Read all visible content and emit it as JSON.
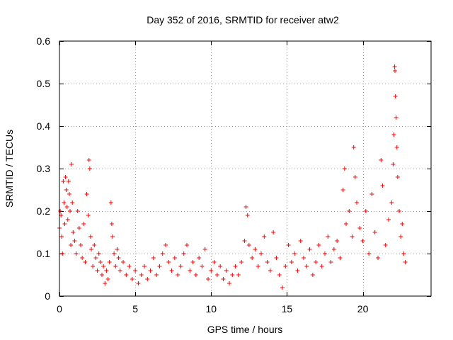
{
  "chart_data": {
    "type": "scatter",
    "title": "Day 352 of 2016, SRMTID for receiver atw2",
    "xlabel": "GPS time / hours",
    "ylabel": "SRMTID / TECUs",
    "xlim": [
      0,
      24.5
    ],
    "ylim": [
      0,
      0.6
    ],
    "xticks": [
      0,
      5,
      10,
      15,
      20
    ],
    "yticks": [
      0,
      0.1,
      0.2,
      0.3,
      0.4,
      0.5,
      0.6
    ],
    "xtick_labels": [
      "0",
      "5",
      "10",
      "15",
      "20"
    ],
    "ytick_labels": [
      "0",
      "0.1",
      "0.2",
      "0.3",
      "0.4",
      "0.5",
      "0.6"
    ],
    "grid": true,
    "marker": "+",
    "color": "#ff0000",
    "series": [
      {
        "name": "SRMTID",
        "points": [
          [
            0.0,
            0.16
          ],
          [
            0.05,
            0.2
          ],
          [
            0.1,
            0.19
          ],
          [
            0.15,
            0.14
          ],
          [
            0.2,
            0.1
          ],
          [
            0.25,
            0.27
          ],
          [
            0.3,
            0.22
          ],
          [
            0.35,
            0.17
          ],
          [
            0.4,
            0.28
          ],
          [
            0.45,
            0.25
          ],
          [
            0.5,
            0.21
          ],
          [
            0.55,
            0.18
          ],
          [
            0.6,
            0.27
          ],
          [
            0.65,
            0.24
          ],
          [
            0.7,
            0.2
          ],
          [
            0.75,
            0.12
          ],
          [
            0.8,
            0.31
          ],
          [
            0.85,
            0.22
          ],
          [
            0.9,
            0.15
          ],
          [
            1.0,
            0.13
          ],
          [
            1.1,
            0.1
          ],
          [
            1.2,
            0.2
          ],
          [
            1.3,
            0.16
          ],
          [
            1.4,
            0.12
          ],
          [
            1.5,
            0.09
          ],
          [
            1.6,
            0.17
          ],
          [
            1.7,
            0.08
          ],
          [
            1.8,
            0.24
          ],
          [
            1.9,
            0.19
          ],
          [
            1.95,
            0.32
          ],
          [
            2.0,
            0.3
          ],
          [
            2.05,
            0.14
          ],
          [
            2.1,
            0.11
          ],
          [
            2.2,
            0.07
          ],
          [
            2.3,
            0.12
          ],
          [
            2.4,
            0.09
          ],
          [
            2.5,
            0.06
          ],
          [
            2.6,
            0.1
          ],
          [
            2.7,
            0.08
          ],
          [
            2.8,
            0.05
          ],
          [
            2.9,
            0.07
          ],
          [
            3.0,
            0.03
          ],
          [
            3.1,
            0.06
          ],
          [
            3.2,
            0.04
          ],
          [
            3.3,
            0.08
          ],
          [
            3.4,
            0.22
          ],
          [
            3.45,
            0.17
          ],
          [
            3.5,
            0.14
          ],
          [
            3.6,
            0.1
          ],
          [
            3.7,
            0.07
          ],
          [
            3.8,
            0.11
          ],
          [
            3.9,
            0.09
          ],
          [
            4.0,
            0.06
          ],
          [
            4.2,
            0.08
          ],
          [
            4.4,
            0.05
          ],
          [
            4.6,
            0.07
          ],
          [
            4.8,
            0.04
          ],
          [
            5.0,
            0.06
          ],
          [
            5.2,
            0.03
          ],
          [
            5.4,
            0.05
          ],
          [
            5.6,
            0.07
          ],
          [
            5.8,
            0.04
          ],
          [
            6.0,
            0.06
          ],
          [
            6.2,
            0.09
          ],
          [
            6.4,
            0.05
          ],
          [
            6.6,
            0.07
          ],
          [
            6.8,
            0.1
          ],
          [
            7.0,
            0.12
          ],
          [
            7.2,
            0.08
          ],
          [
            7.4,
            0.06
          ],
          [
            7.6,
            0.09
          ],
          [
            7.8,
            0.05
          ],
          [
            8.0,
            0.07
          ],
          [
            8.2,
            0.1
          ],
          [
            8.4,
            0.12
          ],
          [
            8.6,
            0.06
          ],
          [
            8.8,
            0.08
          ],
          [
            9.0,
            0.05
          ],
          [
            9.2,
            0.09
          ],
          [
            9.4,
            0.07
          ],
          [
            9.6,
            0.11
          ],
          [
            9.8,
            0.04
          ],
          [
            10.0,
            0.06
          ],
          [
            10.2,
            0.08
          ],
          [
            10.4,
            0.05
          ],
          [
            10.6,
            0.07
          ],
          [
            10.8,
            0.04
          ],
          [
            11.0,
            0.06
          ],
          [
            11.2,
            0.03
          ],
          [
            11.4,
            0.05
          ],
          [
            11.6,
            0.07
          ],
          [
            11.8,
            0.05
          ],
          [
            12.0,
            0.08
          ],
          [
            12.2,
            0.13
          ],
          [
            12.3,
            0.21
          ],
          [
            12.4,
            0.19
          ],
          [
            12.5,
            0.12
          ],
          [
            12.7,
            0.09
          ],
          [
            12.9,
            0.11
          ],
          [
            13.1,
            0.07
          ],
          [
            13.3,
            0.1
          ],
          [
            13.5,
            0.14
          ],
          [
            13.7,
            0.08
          ],
          [
            13.9,
            0.06
          ],
          [
            14.1,
            0.15
          ],
          [
            14.3,
            0.09
          ],
          [
            14.5,
            0.05
          ],
          [
            14.7,
            0.02
          ],
          [
            14.9,
            0.07
          ],
          [
            15.1,
            0.12
          ],
          [
            15.3,
            0.08
          ],
          [
            15.5,
            0.1
          ],
          [
            15.7,
            0.06
          ],
          [
            15.9,
            0.13
          ],
          [
            16.1,
            0.09
          ],
          [
            16.3,
            0.07
          ],
          [
            16.5,
            0.11
          ],
          [
            16.7,
            0.05
          ],
          [
            16.9,
            0.08
          ],
          [
            17.1,
            0.12
          ],
          [
            17.3,
            0.07
          ],
          [
            17.5,
            0.1
          ],
          [
            17.7,
            0.14
          ],
          [
            17.9,
            0.08
          ],
          [
            18.1,
            0.11
          ],
          [
            18.3,
            0.13
          ],
          [
            18.5,
            0.09
          ],
          [
            18.7,
            0.25
          ],
          [
            18.8,
            0.3
          ],
          [
            18.9,
            0.17
          ],
          [
            19.1,
            0.2
          ],
          [
            19.3,
            0.14
          ],
          [
            19.4,
            0.35
          ],
          [
            19.5,
            0.28
          ],
          [
            19.6,
            0.22
          ],
          [
            19.8,
            0.16
          ],
          [
            20.0,
            0.13
          ],
          [
            20.2,
            0.2
          ],
          [
            20.4,
            0.1
          ],
          [
            20.6,
            0.24
          ],
          [
            20.8,
            0.15
          ],
          [
            21.0,
            0.09
          ],
          [
            21.2,
            0.32
          ],
          [
            21.3,
            0.26
          ],
          [
            21.5,
            0.12
          ],
          [
            21.7,
            0.18
          ],
          [
            21.9,
            0.22
          ],
          [
            22.0,
            0.31
          ],
          [
            22.05,
            0.38
          ],
          [
            22.1,
            0.54
          ],
          [
            22.12,
            0.53
          ],
          [
            22.15,
            0.47
          ],
          [
            22.2,
            0.42
          ],
          [
            22.25,
            0.35
          ],
          [
            22.3,
            0.28
          ],
          [
            22.4,
            0.2
          ],
          [
            22.5,
            0.14
          ],
          [
            22.6,
            0.17
          ],
          [
            22.7,
            0.1
          ],
          [
            22.8,
            0.08
          ]
        ]
      }
    ]
  }
}
